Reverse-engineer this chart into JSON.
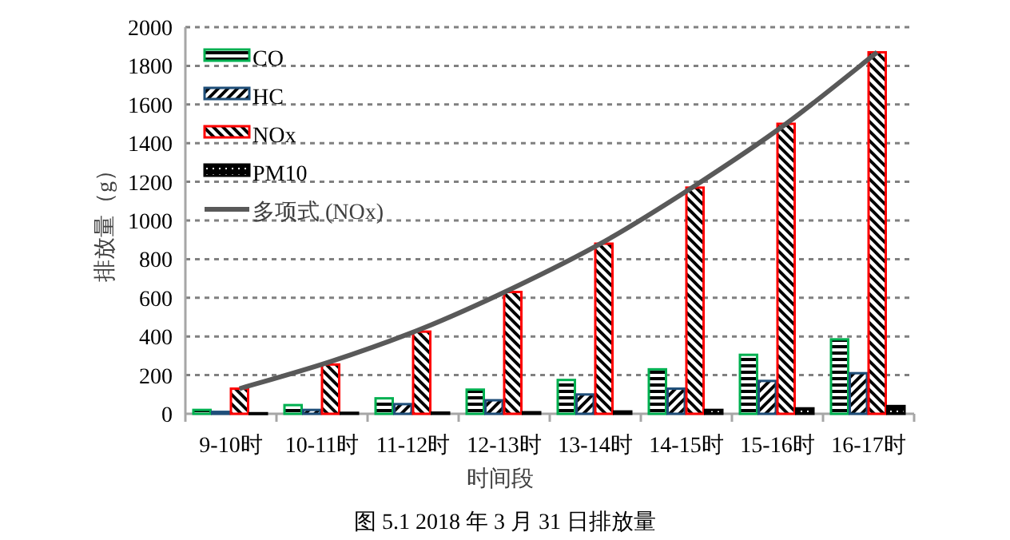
{
  "chart_data": {
    "type": "bar",
    "title": "图 5.1 2018 年 3 月 31 日排放量",
    "xlabel": "时间段",
    "ylabel": "排放量（g）",
    "categories": [
      "9-10时",
      "10-11时",
      "11-12时",
      "12-13时",
      "13-14时",
      "14-15时",
      "15-16时",
      "16-17时"
    ],
    "series": [
      {
        "name": "CO",
        "color": "#00b050",
        "values": [
          20,
          45,
          80,
          125,
          175,
          230,
          305,
          385
        ]
      },
      {
        "name": "HC",
        "color": "#1f4e79",
        "values": [
          10,
          20,
          50,
          70,
          100,
          130,
          170,
          210
        ]
      },
      {
        "name": "NOx",
        "color": "#ff0000",
        "values": [
          130,
          255,
          425,
          630,
          880,
          1170,
          1500,
          1870
        ]
      },
      {
        "name": "PM10",
        "color": "#000000",
        "values": [
          3,
          5,
          6,
          8,
          12,
          20,
          28,
          40
        ]
      },
      {
        "name": "多项式 (NOx)",
        "type": "line",
        "color": "#595959",
        "values": [
          130,
          270,
          440,
          650,
          890,
          1180,
          1500,
          1870
        ]
      }
    ],
    "ylim": [
      0,
      2000
    ],
    "yticks": [
      0,
      200,
      400,
      600,
      800,
      1000,
      1200,
      1400,
      1600,
      1800,
      2000
    ],
    "grid": "y",
    "legend": "top left",
    "marker": "none",
    "line_style": "solid"
  }
}
